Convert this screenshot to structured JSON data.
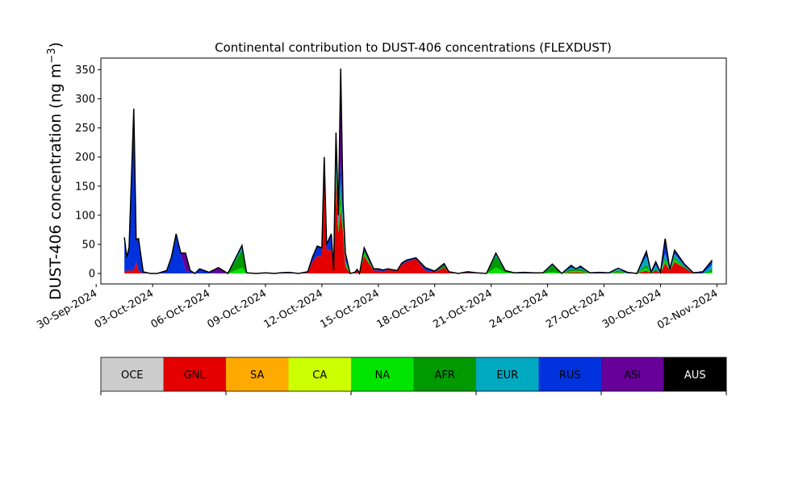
{
  "chart_data": {
    "type": "area",
    "title": "Continental contribution to DUST-406 concentrations (FLEXDUST)",
    "ylabel_main": "DUST-406 concentration (ng m",
    "ylabel_exp": "−3",
    "ylabel_close": ")",
    "xlabel": "",
    "ylim": [
      -18,
      370
    ],
    "xlim": [
      "2024-09-30T06:00",
      "2024-11-02T12:00"
    ],
    "y_ticks": [
      0,
      50,
      100,
      150,
      200,
      250,
      300,
      350
    ],
    "x_ticks": [
      "30-Sep-2024",
      "03-Oct-2024",
      "06-Oct-2024",
      "09-Oct-2024",
      "12-Oct-2024",
      "15-Oct-2024",
      "18-Oct-2024",
      "21-Oct-2024",
      "24-Oct-2024",
      "27-Oct-2024",
      "30-Oct-2024",
      "02-Nov-2024"
    ],
    "x_tick_dates": [
      "2024-09-30",
      "2024-10-03",
      "2024-10-06",
      "2024-10-09",
      "2024-10-12",
      "2024-10-15",
      "2024-10-18",
      "2024-10-21",
      "2024-10-24",
      "2024-10-27",
      "2024-10-30",
      "2024-11-02"
    ],
    "grid": false,
    "stacked": true,
    "times": [
      "2024-10-01T12:00",
      "2024-10-01T15:00",
      "2024-10-01T18:00",
      "2024-10-02T00:00",
      "2024-10-02T03:00",
      "2024-10-02T06:00",
      "2024-10-02T12:00",
      "2024-10-02T15:00",
      "2024-10-02T21:00",
      "2024-10-03T06:00",
      "2024-10-03T18:00",
      "2024-10-04T00:00",
      "2024-10-04T06:00",
      "2024-10-04T12:00",
      "2024-10-04T18:00",
      "2024-10-05T00:00",
      "2024-10-05T06:00",
      "2024-10-05T12:00",
      "2024-10-06T00:00",
      "2024-10-06T12:00",
      "2024-10-07T00:00",
      "2024-10-07T18:00",
      "2024-10-08T00:00",
      "2024-10-08T12:00",
      "2024-10-09T00:00",
      "2024-10-09T12:00",
      "2024-10-09T18:00",
      "2024-10-10T06:00",
      "2024-10-10T18:00",
      "2024-10-11T06:00",
      "2024-10-11T12:00",
      "2024-10-11T18:00",
      "2024-10-12T00:00",
      "2024-10-12T03:00",
      "2024-10-12T06:00",
      "2024-10-12T12:00",
      "2024-10-12T15:00",
      "2024-10-12T18:00",
      "2024-10-12T21:00",
      "2024-10-13T00:00",
      "2024-10-13T03:00",
      "2024-10-13T06:00",
      "2024-10-13T12:00",
      "2024-10-13T18:00",
      "2024-10-13T21:00",
      "2024-10-14T00:00",
      "2024-10-14T06:00",
      "2024-10-14T18:00",
      "2024-10-15T00:00",
      "2024-10-15T06:00",
      "2024-10-15T12:00",
      "2024-10-16T00:00",
      "2024-10-16T06:00",
      "2024-10-16T12:00",
      "2024-10-17T00:00",
      "2024-10-17T12:00",
      "2024-10-18T00:00",
      "2024-10-18T12:00",
      "2024-10-18T18:00",
      "2024-10-19T06:00",
      "2024-10-19T18:00",
      "2024-10-20T06:00",
      "2024-10-20T18:00",
      "2024-10-21T06:00",
      "2024-10-21T18:00",
      "2024-10-22T06:00",
      "2024-10-22T18:00",
      "2024-10-23T06:00",
      "2024-10-23T18:00",
      "2024-10-24T06:00",
      "2024-10-24T18:00",
      "2024-10-25T06:00",
      "2024-10-25T12:00",
      "2024-10-25T18:00",
      "2024-10-26T06:00",
      "2024-10-26T18:00",
      "2024-10-27T06:00",
      "2024-10-27T18:00",
      "2024-10-28T06:00",
      "2024-10-28T18:00",
      "2024-10-29T06:00",
      "2024-10-29T12:00",
      "2024-10-29T18:00",
      "2024-10-30T00:00",
      "2024-10-30T06:00",
      "2024-10-30T12:00",
      "2024-10-30T18:00",
      "2024-10-31T06:00",
      "2024-10-31T18:00",
      "2024-11-01T06:00",
      "2024-11-01T18:00"
    ],
    "total": [
      62,
      28,
      45,
      283,
      58,
      60,
      3,
      2,
      0,
      0,
      5,
      28,
      68,
      35,
      35,
      5,
      0,
      8,
      2,
      10,
      0,
      48,
      1,
      0,
      1,
      0,
      1,
      2,
      0,
      3,
      28,
      47,
      44,
      200,
      50,
      68,
      5,
      242,
      100,
      352,
      120,
      35,
      0,
      2,
      7,
      0,
      44,
      8,
      8,
      6,
      8,
      5,
      18,
      23,
      27,
      10,
      4,
      17,
      3,
      0,
      3,
      1,
      0,
      35,
      5,
      1,
      2,
      1,
      1,
      16,
      0,
      14,
      8,
      12,
      1,
      2,
      1,
      9,
      2,
      0,
      38,
      2,
      20,
      2,
      60,
      7,
      40,
      17,
      1,
      3,
      23
    ],
    "series": [
      {
        "name": "OCE",
        "color": "#cccccc",
        "values": [
          0,
          0,
          0,
          0,
          0,
          0,
          0,
          0,
          0,
          0,
          0,
          0,
          0,
          0,
          0,
          0,
          0,
          0,
          0,
          0,
          0,
          0,
          0,
          0,
          0,
          0,
          0,
          0,
          0,
          0,
          0,
          0,
          0,
          0,
          0,
          0,
          0,
          0,
          0,
          0,
          0,
          0,
          0,
          0,
          0,
          0,
          0,
          0,
          0,
          0,
          0,
          0,
          0,
          0,
          0,
          0,
          0,
          0,
          0,
          0,
          0,
          0,
          0,
          0,
          0,
          0,
          0,
          0,
          0,
          0,
          0,
          0,
          0,
          0,
          0,
          0,
          0,
          0,
          0,
          0,
          0,
          0,
          0,
          0,
          0,
          0,
          0,
          0,
          0,
          0,
          0
        ]
      },
      {
        "name": "GNL",
        "color": "#e50000",
        "values": [
          2,
          5,
          5,
          5,
          20,
          5,
          0,
          0,
          0,
          0,
          0,
          0,
          0,
          0,
          0,
          0,
          0,
          0,
          0,
          0,
          0,
          0,
          0,
          0,
          0,
          0,
          0,
          0,
          0,
          1,
          20,
          30,
          30,
          160,
          40,
          40,
          2,
          160,
          70,
          110,
          70,
          12,
          0,
          0,
          5,
          0,
          30,
          5,
          5,
          3,
          6,
          4,
          15,
          20,
          25,
          5,
          2,
          10,
          2,
          0,
          1,
          0,
          0,
          0,
          0,
          0,
          0,
          0,
          0,
          0,
          0,
          2,
          2,
          2,
          0,
          0,
          0,
          1,
          0,
          0,
          5,
          0,
          5,
          0,
          18,
          5,
          20,
          10,
          0,
          0,
          0
        ]
      },
      {
        "name": "SA",
        "color": "#ffaa00",
        "values": [
          0,
          0,
          0,
          0,
          0,
          0,
          0,
          0,
          0,
          0,
          0,
          0,
          0,
          0,
          0,
          0,
          0,
          0,
          0,
          0,
          0,
          0,
          0,
          0,
          0,
          0,
          0,
          0,
          0,
          0,
          0,
          0,
          0,
          0,
          0,
          0,
          0,
          0,
          0,
          0,
          0,
          0,
          0,
          0,
          0,
          0,
          0,
          0,
          0,
          0,
          0,
          0,
          0,
          0,
          0,
          0,
          0,
          0,
          0,
          0,
          0,
          0,
          0,
          0,
          0,
          0,
          0,
          0,
          0,
          0,
          0,
          0,
          0,
          0,
          0,
          0,
          0,
          0,
          0,
          0,
          0,
          0,
          0,
          0,
          0,
          0,
          0,
          0,
          0,
          0,
          0
        ]
      },
      {
        "name": "CA",
        "color": "#ccff00",
        "values": [
          0,
          0,
          0,
          0,
          0,
          0,
          0,
          0,
          0,
          0,
          0,
          0,
          0,
          0,
          0,
          0,
          0,
          0,
          0,
          0,
          0,
          0,
          0,
          0,
          0,
          0,
          0,
          0,
          0,
          0,
          0,
          0,
          0,
          0,
          0,
          0,
          0,
          0,
          0,
          0,
          0,
          0,
          0,
          0,
          0,
          0,
          0,
          0,
          0,
          0,
          0,
          0,
          0,
          0,
          0,
          0,
          0,
          0,
          0,
          0,
          0,
          0,
          0,
          0,
          0,
          0,
          0,
          0,
          0,
          0,
          0,
          0,
          0,
          0,
          0,
          0,
          0,
          0,
          0,
          0,
          0,
          0,
          0,
          0,
          0,
          0,
          0,
          0,
          0,
          0,
          0
        ]
      },
      {
        "name": "NA",
        "color": "#00e500",
        "values": [
          0,
          0,
          0,
          0,
          0,
          0,
          0,
          0,
          0,
          0,
          0,
          0,
          0,
          0,
          0,
          0,
          0,
          0,
          0,
          0,
          0,
          10,
          0,
          0,
          0,
          0,
          0,
          0,
          0,
          0,
          0,
          0,
          0,
          0,
          0,
          0,
          0,
          10,
          10,
          10,
          5,
          3,
          0,
          0,
          0,
          0,
          5,
          0,
          0,
          0,
          0,
          0,
          0,
          0,
          0,
          0,
          0,
          0,
          0,
          0,
          0,
          0,
          0,
          10,
          2,
          0,
          0,
          0,
          0,
          3,
          0,
          2,
          2,
          2,
          0,
          0,
          0,
          2,
          0,
          0,
          5,
          0,
          0,
          0,
          5,
          0,
          5,
          0,
          0,
          0,
          3
        ]
      },
      {
        "name": "AFR",
        "color": "#009900",
        "values": [
          0,
          0,
          0,
          0,
          0,
          0,
          0,
          0,
          0,
          0,
          0,
          0,
          0,
          0,
          0,
          0,
          0,
          0,
          0,
          0,
          0,
          30,
          0,
          0,
          0,
          0,
          0,
          0,
          0,
          0,
          0,
          0,
          0,
          0,
          0,
          0,
          0,
          10,
          5,
          20,
          5,
          3,
          0,
          0,
          0,
          0,
          4,
          0,
          0,
          0,
          0,
          0,
          0,
          0,
          0,
          0,
          0,
          4,
          0,
          0,
          0,
          0,
          0,
          20,
          2,
          0,
          0,
          0,
          0,
          10,
          0,
          4,
          2,
          4,
          0,
          0,
          0,
          2,
          0,
          0,
          5,
          0,
          3,
          0,
          5,
          0,
          3,
          2,
          0,
          0,
          4
        ]
      },
      {
        "name": "EUR",
        "color": "#00a8c0",
        "values": [
          0,
          0,
          0,
          0,
          0,
          0,
          0,
          0,
          0,
          0,
          0,
          0,
          0,
          0,
          0,
          0,
          0,
          0,
          0,
          0,
          0,
          5,
          0,
          0,
          0,
          0,
          0,
          0,
          0,
          0,
          0,
          0,
          0,
          0,
          0,
          0,
          0,
          20,
          5,
          20,
          15,
          5,
          0,
          0,
          0,
          0,
          0,
          0,
          0,
          0,
          0,
          0,
          0,
          0,
          0,
          0,
          0,
          0,
          0,
          0,
          0,
          0,
          0,
          5,
          0,
          0,
          0,
          0,
          0,
          1,
          0,
          2,
          1,
          2,
          0,
          0,
          0,
          2,
          0,
          0,
          15,
          0,
          6,
          0,
          7,
          0,
          6,
          2,
          0,
          0,
          8
        ]
      },
      {
        "name": "RUS",
        "color": "#0033dd",
        "values": [
          60,
          23,
          40,
          278,
          38,
          55,
          3,
          2,
          0,
          0,
          5,
          28,
          68,
          35,
          5,
          2,
          0,
          8,
          2,
          0,
          0,
          3,
          1,
          0,
          1,
          0,
          1,
          2,
          0,
          2,
          8,
          17,
          14,
          0,
          10,
          28,
          3,
          17,
          5,
          32,
          20,
          12,
          0,
          2,
          2,
          0,
          5,
          3,
          3,
          3,
          2,
          1,
          3,
          3,
          2,
          5,
          2,
          3,
          1,
          0,
          2,
          1,
          0,
          0,
          1,
          1,
          2,
          1,
          1,
          2,
          0,
          4,
          1,
          4,
          1,
          2,
          1,
          0,
          2,
          0,
          8,
          2,
          6,
          2,
          20,
          2,
          6,
          3,
          1,
          3,
          8
        ]
      },
      {
        "name": "ASI",
        "color": "#660099",
        "values": [
          0,
          0,
          0,
          0,
          0,
          0,
          0,
          0,
          0,
          0,
          0,
          0,
          0,
          0,
          30,
          3,
          0,
          0,
          0,
          10,
          0,
          0,
          0,
          0,
          0,
          0,
          0,
          0,
          0,
          0,
          0,
          0,
          0,
          40,
          0,
          0,
          0,
          25,
          5,
          160,
          5,
          0,
          0,
          0,
          0,
          0,
          0,
          0,
          0,
          0,
          0,
          0,
          0,
          0,
          0,
          0,
          0,
          0,
          0,
          0,
          0,
          0,
          0,
          0,
          0,
          0,
          0,
          0,
          0,
          0,
          0,
          0,
          0,
          0,
          0,
          0,
          0,
          0,
          0,
          0,
          0,
          0,
          0,
          0,
          5,
          0,
          0,
          0,
          0,
          0,
          0
        ]
      },
      {
        "name": "AUS",
        "color": "#000000",
        "values": [
          0,
          0,
          0,
          0,
          0,
          0,
          0,
          0,
          0,
          0,
          0,
          0,
          0,
          0,
          0,
          0,
          0,
          0,
          0,
          0,
          0,
          0,
          0,
          0,
          0,
          0,
          0,
          0,
          0,
          0,
          0,
          0,
          0,
          0,
          0,
          0,
          0,
          0,
          0,
          0,
          0,
          0,
          0,
          0,
          0,
          0,
          0,
          0,
          0,
          0,
          0,
          0,
          0,
          0,
          0,
          0,
          0,
          0,
          0,
          0,
          0,
          0,
          0,
          0,
          0,
          0,
          0,
          0,
          0,
          0,
          0,
          0,
          0,
          0,
          0,
          0,
          0,
          0,
          0,
          0,
          0,
          0,
          0,
          0,
          0,
          0,
          0,
          0,
          0,
          0,
          0
        ]
      }
    ],
    "legend": {
      "type": "colorbar",
      "placement": "bottom",
      "text_colors": [
        "#000000",
        "#000000",
        "#000000",
        "#000000",
        "#000000",
        "#000000",
        "#000000",
        "#000000",
        "#000000",
        "#ffffff"
      ]
    }
  }
}
